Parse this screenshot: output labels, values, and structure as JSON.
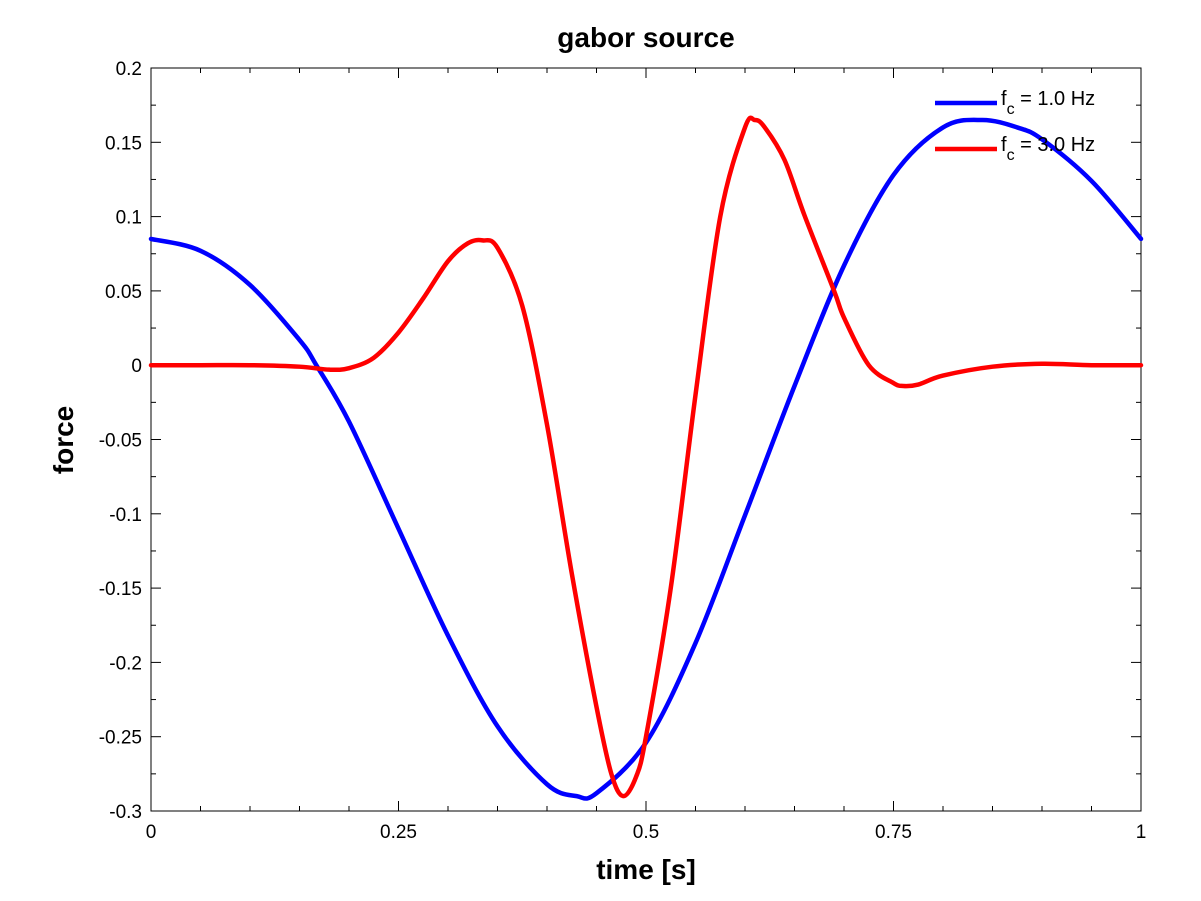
{
  "chart_data": {
    "type": "line",
    "title": "gabor source",
    "xlabel": "time [s]",
    "ylabel": "force",
    "xlim": [
      0,
      1
    ],
    "ylim": [
      -0.3,
      0.2
    ],
    "xticks": [
      0,
      0.25,
      0.5,
      0.75,
      1
    ],
    "xtick_labels": [
      "0",
      "0.25",
      "0.5",
      "0.75",
      "1"
    ],
    "yticks": [
      0.2,
      0.15,
      0.1,
      0.05,
      0,
      -0.05,
      -0.1,
      -0.15,
      -0.2,
      -0.25,
      -0.3
    ],
    "ytick_labels": [
      "0.2",
      "0.15",
      "0.1",
      "0.05",
      "0",
      "-0.05",
      "-0.1",
      "-0.15",
      "-0.2",
      "-0.25",
      "-0.3"
    ],
    "grid": false,
    "legend_position": "top-right",
    "series": [
      {
        "name": "f_c = 1.0 Hz",
        "legend": {
          "base": "f",
          "sub": "c",
          "rest": " = 1.0 Hz"
        },
        "color": "#0000ff",
        "x": [
          0,
          0.05,
          0.1,
          0.15,
          0.167,
          0.2,
          0.25,
          0.3,
          0.35,
          0.4,
          0.43,
          0.45,
          0.5,
          0.55,
          0.6,
          0.65,
          0.7,
          0.75,
          0.8,
          0.84,
          0.875,
          0.9,
          0.95,
          1.0
        ],
        "y": [
          0.085,
          0.077,
          0.054,
          0.017,
          0.0,
          -0.038,
          -0.11,
          -0.182,
          -0.243,
          -0.282,
          -0.29,
          -0.288,
          -0.254,
          -0.187,
          -0.101,
          -0.014,
          0.067,
          0.128,
          0.16,
          0.165,
          0.16,
          0.152,
          0.124,
          0.085
        ]
      },
      {
        "name": "f_c = 3.0 Hz",
        "legend": {
          "base": "f",
          "sub": "c",
          "rest": " = 3.0 Hz"
        },
        "color": "#ff0000",
        "x": [
          0,
          0.05,
          0.1,
          0.15,
          0.18,
          0.2,
          0.225,
          0.25,
          0.275,
          0.3,
          0.32,
          0.335,
          0.35,
          0.375,
          0.4,
          0.425,
          0.45,
          0.465,
          0.477,
          0.49,
          0.5,
          0.525,
          0.55,
          0.575,
          0.6,
          0.61,
          0.62,
          0.64,
          0.66,
          0.69,
          0.7,
          0.725,
          0.75,
          0.76,
          0.775,
          0.8,
          0.85,
          0.9,
          0.95,
          1.0
        ],
        "y": [
          0.0,
          0.0,
          0.0,
          -0.001,
          -0.003,
          -0.002,
          0.005,
          0.022,
          0.045,
          0.07,
          0.082,
          0.084,
          0.079,
          0.04,
          -0.04,
          -0.14,
          -0.23,
          -0.275,
          -0.29,
          -0.277,
          -0.25,
          -0.15,
          -0.02,
          0.1,
          0.16,
          0.165,
          0.16,
          0.138,
          0.101,
          0.05,
          0.032,
          0.0,
          -0.012,
          -0.014,
          -0.013,
          -0.007,
          -0.001,
          0.001,
          0.0,
          0.0
        ]
      }
    ]
  }
}
